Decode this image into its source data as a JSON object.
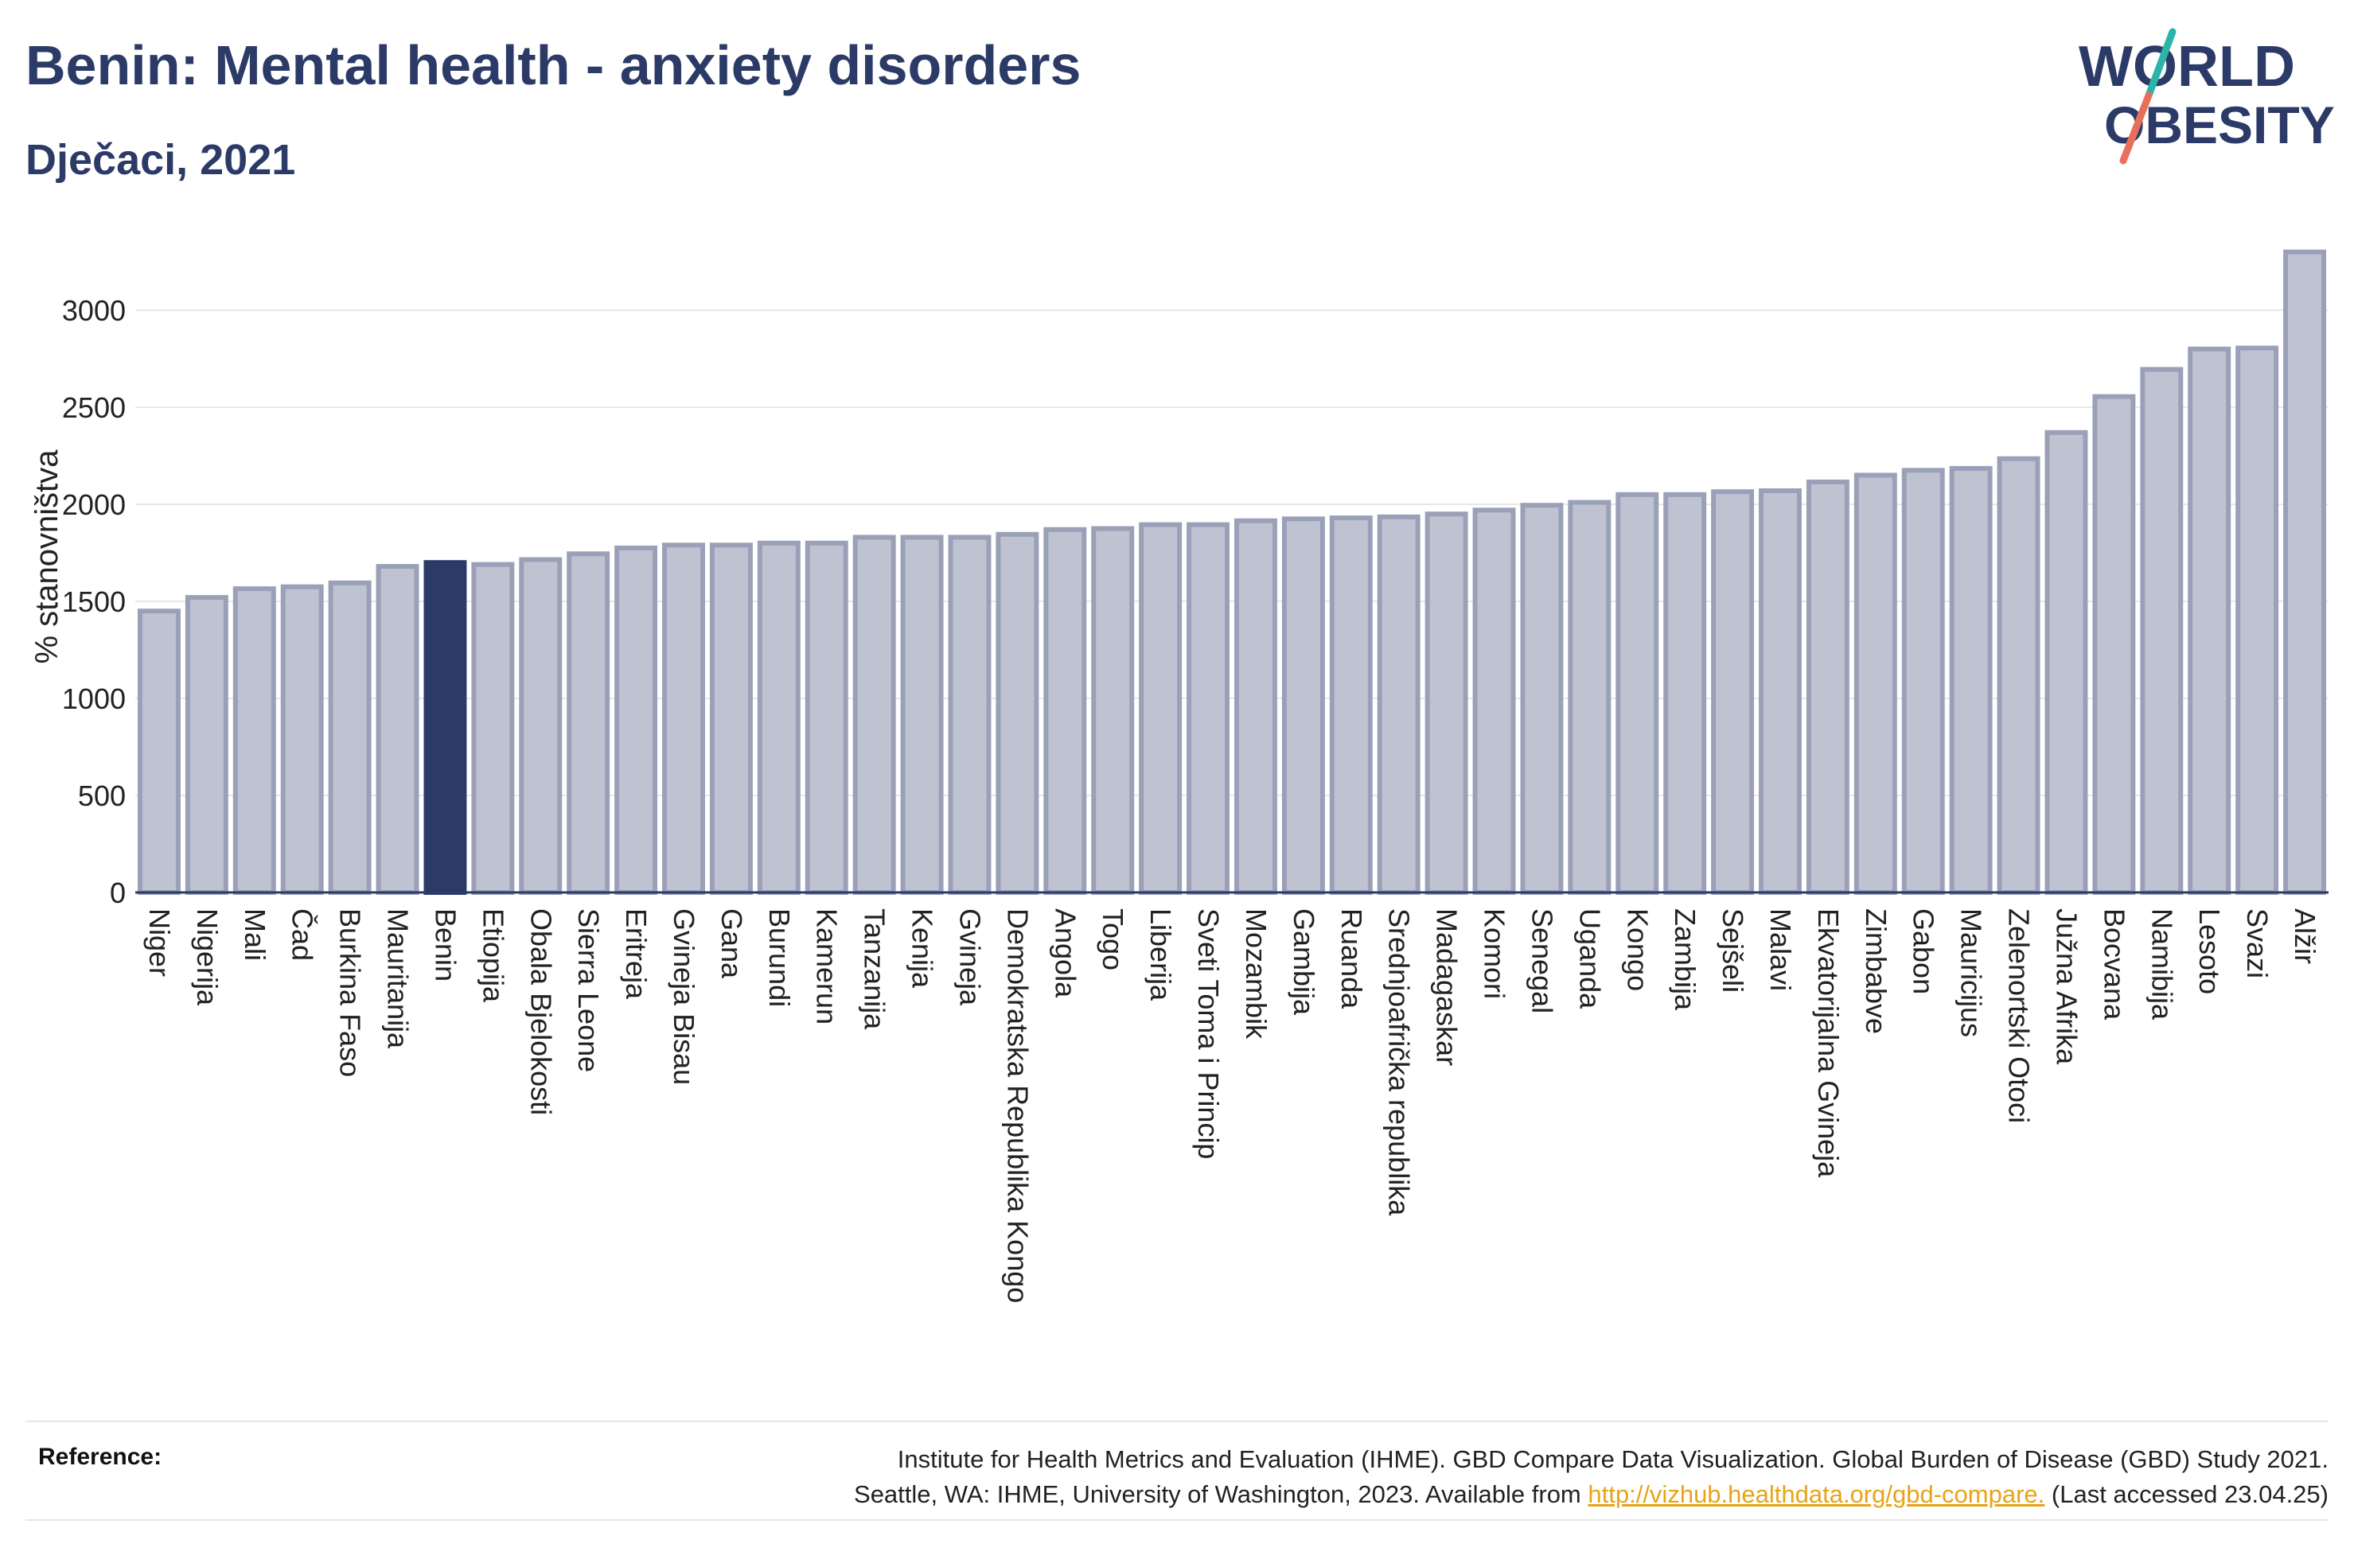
{
  "header": {
    "title": "Benin: Mental health - anxiety disorders",
    "subtitle": "Dječaci, 2021"
  },
  "logo": {
    "line1": "WORLD",
    "line2": "OBESITY"
  },
  "colors": {
    "title": "#2b3a67",
    "bar": "#bfc3d1",
    "bar_edge": "#9aa0b8",
    "highlight": "#2b3a67",
    "logo_teal": "#2bb5a8",
    "logo_coral": "#e8705a",
    "link": "#e8a317"
  },
  "chart_data": {
    "type": "bar",
    "ylabel": "% stanovništva",
    "ylim": [
      0,
      3300
    ],
    "yticks": [
      0,
      500,
      1000,
      1500,
      2000,
      2500,
      3000
    ],
    "grid": true,
    "highlight": "Benin",
    "categories": [
      "Niger",
      "Nigerija",
      "Mali",
      "Čad",
      "Burkina Faso",
      "Mauritanija",
      "Benin",
      "Etiopija",
      "Obala Bjelokosti",
      "Sierra Leone",
      "Eritreja",
      "Gvineja Bisau",
      "Gana",
      "Burundi",
      "Kamerun",
      "Tanzanija",
      "Kenija",
      "Gvineja",
      "Demokratska Republika Kongo",
      "Angola",
      "Togo",
      "Liberija",
      "Sveti Toma i Princip",
      "Mozambik",
      "Gambija",
      "Ruanda",
      "Srednjoafrička republika",
      "Madagaskar",
      "Komori",
      "Senegal",
      "Uganda",
      "Kongo",
      "Zambija",
      "Sejšeli",
      "Malavi",
      "Ekvatorijalna Gvineja",
      "Zimbabve",
      "Gabon",
      "Mauricijus",
      "Zelenortski Otoci",
      "Južna Afrika",
      "Bocvana",
      "Namibija",
      "Lesoto",
      "Svazi",
      "Alžir"
    ],
    "values": [
      1450,
      1520,
      1565,
      1575,
      1595,
      1680,
      1700,
      1690,
      1715,
      1745,
      1775,
      1790,
      1790,
      1800,
      1800,
      1830,
      1830,
      1830,
      1845,
      1870,
      1875,
      1895,
      1895,
      1915,
      1925,
      1930,
      1935,
      1950,
      1970,
      1995,
      2010,
      2050,
      2050,
      2065,
      2070,
      2115,
      2150,
      2175,
      2185,
      2235,
      2370,
      2555,
      2695,
      2800,
      2805,
      3300
    ]
  },
  "reference": {
    "label": "Reference:",
    "line1": "Institute for Health Metrics and Evaluation (IHME). GBD Compare Data Visualization. Global Burden of Disease (GBD) Study 2021.",
    "line2_prefix": "Seattle, WA: IHME, University of Washington, 2023. Available from",
    "link": "http://vizhub.healthdata.org/gbd-compare.",
    "line2_suffix": "(Last accessed 23.04.25)"
  }
}
